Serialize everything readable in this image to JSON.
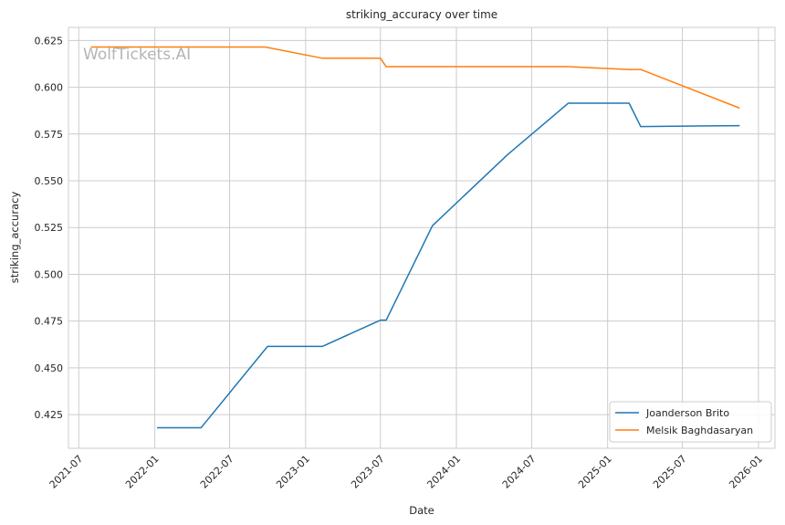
{
  "watermark": "WolfTickets.AI",
  "chart_data": {
    "type": "line",
    "title": "striking_accuracy over time",
    "xlabel": "Date",
    "ylabel": "striking_accuracy",
    "grid": true,
    "legend_position": "bottom-right",
    "xlim": [
      "2021-06-06",
      "2026-02-10"
    ],
    "ylim": [
      0.407,
      0.632
    ],
    "x_ticks": [
      "2021-07",
      "2022-01",
      "2022-07",
      "2023-01",
      "2023-07",
      "2024-01",
      "2024-07",
      "2025-01",
      "2025-07",
      "2026-01"
    ],
    "y_ticks": [
      0.425,
      0.45,
      0.475,
      0.5,
      0.525,
      0.55,
      0.575,
      0.6,
      0.625
    ],
    "y_tick_labels": [
      "0.425",
      "0.450",
      "0.475",
      "0.500",
      "0.525",
      "0.550",
      "0.575",
      "0.600",
      "0.625"
    ],
    "series": [
      {
        "name": "Joanderson Brito",
        "color": "#1f77b4",
        "points": [
          {
            "x": "2022-01-08",
            "y": 0.418
          },
          {
            "x": "2022-04-23",
            "y": 0.418
          },
          {
            "x": "2022-10-01",
            "y": 0.4615
          },
          {
            "x": "2023-02-11",
            "y": 0.4615
          },
          {
            "x": "2023-07-01",
            "y": 0.4755
          },
          {
            "x": "2023-07-15",
            "y": 0.4755
          },
          {
            "x": "2023-11-04",
            "y": 0.526
          },
          {
            "x": "2024-05-04",
            "y": 0.564
          },
          {
            "x": "2024-09-28",
            "y": 0.5915
          },
          {
            "x": "2025-02-22",
            "y": 0.5915
          },
          {
            "x": "2025-03-22",
            "y": 0.579
          },
          {
            "x": "2025-11-15",
            "y": 0.5795
          }
        ]
      },
      {
        "name": "Melsik Baghdasaryan",
        "color": "#ff7f0e",
        "points": [
          {
            "x": "2021-08-01",
            "y": 0.6215
          },
          {
            "x": "2022-09-25",
            "y": 0.6215
          },
          {
            "x": "2023-02-11",
            "y": 0.6155
          },
          {
            "x": "2023-07-01",
            "y": 0.6155
          },
          {
            "x": "2023-07-15",
            "y": 0.611
          },
          {
            "x": "2024-09-28",
            "y": 0.611
          },
          {
            "x": "2025-02-22",
            "y": 0.6095
          },
          {
            "x": "2025-03-22",
            "y": 0.6095
          },
          {
            "x": "2025-11-15",
            "y": 0.589
          }
        ]
      }
    ]
  }
}
